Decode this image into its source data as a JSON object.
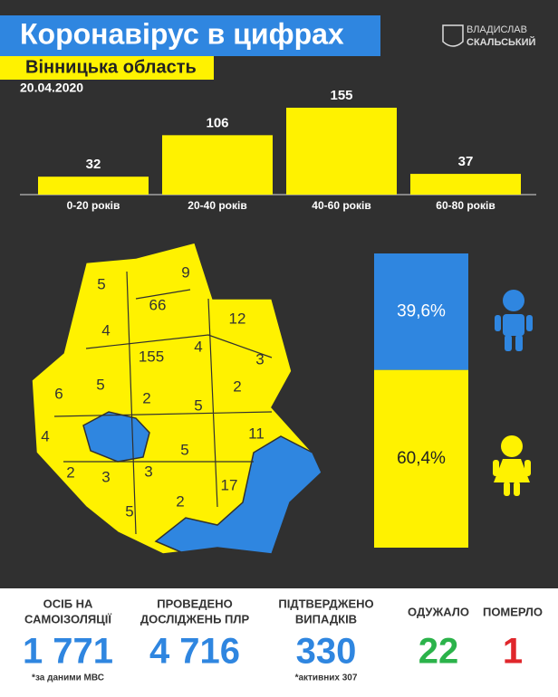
{
  "header": {
    "title": "Коронавірус в цифрах",
    "region": "Вінницька область",
    "date": "20.04.2020",
    "logo": [
      "ВЛАДИСЛАВ",
      "СКАЛЬСЬКИЙ"
    ]
  },
  "chart_data": [
    {
      "type": "bar",
      "categories": [
        "0-20 років",
        "20-40 років",
        "40-60 років",
        "60-80 років"
      ],
      "values": [
        32,
        106,
        155,
        37
      ],
      "color": "#fff200"
    },
    {
      "type": "split",
      "values": [
        39.6,
        60.4
      ],
      "value_labels": [
        "39,6%",
        "60,4%"
      ],
      "colors": [
        "#2f86e0",
        "#fff200"
      ]
    }
  ],
  "map": {
    "regions": [
      5,
      9,
      66,
      4,
      12,
      155,
      4,
      3,
      6,
      5,
      2,
      5,
      2,
      4,
      11,
      5,
      2,
      3,
      3,
      17,
      5,
      2
    ]
  },
  "stats": [
    {
      "label": [
        "ОСІБ НА",
        "САМОІЗОЛЯЦІЇ"
      ],
      "number": "1 771",
      "note": "*за даними МВС",
      "color": "#2f86e0"
    },
    {
      "label": [
        "ПРОВЕДЕНО",
        "ДОСЛІДЖЕНЬ ПЛР"
      ],
      "number": "4 716",
      "color": "#2f86e0"
    },
    {
      "label": [
        "ПІДТВЕРДЖЕНО",
        "ВИПАДКІВ"
      ],
      "number": "330",
      "note": "*активних 307",
      "color": "#2f86e0"
    },
    {
      "label": [
        "ОДУЖАЛО"
      ],
      "number": "22",
      "color": "#2bb34a"
    },
    {
      "label": [
        "ПОМЕРЛО"
      ],
      "number": "1",
      "color": "#e0262b"
    }
  ]
}
